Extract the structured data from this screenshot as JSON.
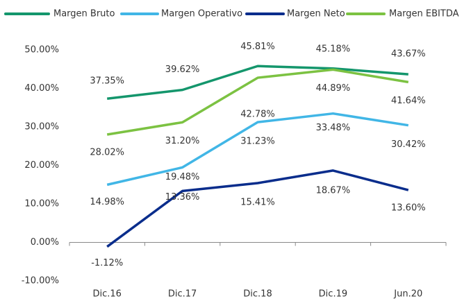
{
  "chart_data": {
    "type": "line",
    "categories": [
      "Dic.16",
      "Dic.17",
      "Dic.18",
      "Dic.19",
      "Jun.20"
    ],
    "series": [
      {
        "name": "Margen Bruto",
        "color": "#14966c",
        "values": [
          37.35,
          39.62,
          45.81,
          45.18,
          43.67
        ],
        "value_labels": [
          "37.35%",
          "39.62%",
          "45.81%",
          "45.18%",
          "43.67%"
        ]
      },
      {
        "name": "Margen Operativo",
        "color": "#41b6e6",
        "values": [
          14.98,
          19.48,
          31.23,
          33.48,
          30.42
        ],
        "value_labels": [
          "14.98%",
          "19.48%",
          "31.23%",
          "33.48%",
          "30.42%"
        ]
      },
      {
        "name": "Margen Neto",
        "color": "#0a2d8c",
        "values": [
          -1.12,
          13.36,
          15.41,
          18.67,
          13.6
        ],
        "value_labels": [
          "-1.12%",
          "13.36%",
          "15.41%",
          "18.67%",
          "13.60%"
        ]
      },
      {
        "name": "Margen EBITDA",
        "color": "#7cc242",
        "values": [
          28.02,
          31.2,
          42.78,
          44.89,
          41.64
        ],
        "value_labels": [
          "28.02%",
          "31.20%",
          "42.78%",
          "44.89%",
          "41.64%"
        ]
      }
    ],
    "ylim": [
      -10,
      50
    ],
    "yticks": [
      {
        "value": -10,
        "label": "-10.00%"
      },
      {
        "value": 0,
        "label": "0.00%"
      },
      {
        "value": 10,
        "label": "10.00%"
      },
      {
        "value": 20,
        "label": "20.00%"
      },
      {
        "value": 30,
        "label": "30.00%"
      },
      {
        "value": 40,
        "label": "40.00%"
      },
      {
        "value": 50,
        "label": "50.00%"
      }
    ],
    "grid": false,
    "legend": "top"
  }
}
